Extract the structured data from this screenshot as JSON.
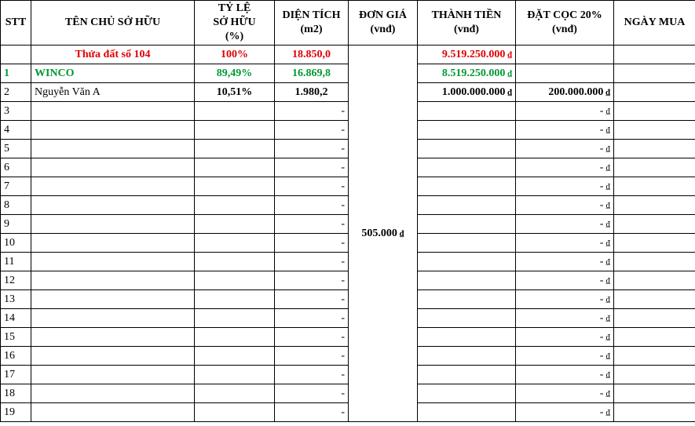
{
  "headers": {
    "stt": "STT",
    "ten_chu": "TÊN CHỦ SỞ HỮU",
    "ty_le_1": "TỶ LỆ",
    "ty_le_2": "SỞ HỮU",
    "ty_le_3": "(%)",
    "dien_tich_1": "DIỆN TÍCH",
    "dien_tich_2": "(m2)",
    "don_gia_1": "ĐƠN GIÁ",
    "don_gia_2": "(vnđ)",
    "thanh_tien_1": "THÀNH TIỀN",
    "thanh_tien_2": "(vnđ)",
    "dat_coc_1": "ĐẶT CỌC 20%",
    "dat_coc_2": "(vnđ)",
    "ngay_mua": "NGÀY MUA"
  },
  "currency_symbol": "₫",
  "total_row": {
    "ten": "Thửa đất số 104",
    "ty_le": "100%",
    "dien_tich": "18.850,0",
    "thanh_tien": "9.519.250.000"
  },
  "unit_price": "505.000",
  "rows": [
    {
      "stt": "1",
      "ten": "WINCO",
      "ty_le": "89,49%",
      "dien_tich": "16.869,8",
      "thanh_tien": "8.519.250.000",
      "dat_coc": "",
      "ngay_mua": ""
    },
    {
      "stt": "2",
      "ten": "Nguyễn Văn A",
      "ty_le": "10,51%",
      "dien_tich": "1.980,2",
      "thanh_tien": "1.000.000.000",
      "dat_coc": "200.000.000",
      "ngay_mua": ""
    },
    {
      "stt": "3",
      "ten": "",
      "ty_le": "",
      "dien_tich": "-",
      "thanh_tien": "",
      "dat_coc": "-",
      "ngay_mua": ""
    },
    {
      "stt": "4",
      "ten": "",
      "ty_le": "",
      "dien_tich": "-",
      "thanh_tien": "",
      "dat_coc": "-",
      "ngay_mua": ""
    },
    {
      "stt": "5",
      "ten": "",
      "ty_le": "",
      "dien_tich": "-",
      "thanh_tien": "",
      "dat_coc": "-",
      "ngay_mua": ""
    },
    {
      "stt": "6",
      "ten": "",
      "ty_le": "",
      "dien_tich": "-",
      "thanh_tien": "",
      "dat_coc": "-",
      "ngay_mua": ""
    },
    {
      "stt": "7",
      "ten": "",
      "ty_le": "",
      "dien_tich": "-",
      "thanh_tien": "",
      "dat_coc": "-",
      "ngay_mua": ""
    },
    {
      "stt": "8",
      "ten": "",
      "ty_le": "",
      "dien_tich": "-",
      "thanh_tien": "",
      "dat_coc": "-",
      "ngay_mua": ""
    },
    {
      "stt": "9",
      "ten": "",
      "ty_le": "",
      "dien_tich": "-",
      "thanh_tien": "",
      "dat_coc": "-",
      "ngay_mua": ""
    },
    {
      "stt": "10",
      "ten": "",
      "ty_le": "",
      "dien_tich": "-",
      "thanh_tien": "",
      "dat_coc": "-",
      "ngay_mua": ""
    },
    {
      "stt": "11",
      "ten": "",
      "ty_le": "",
      "dien_tich": "-",
      "thanh_tien": "",
      "dat_coc": "-",
      "ngay_mua": ""
    },
    {
      "stt": "12",
      "ten": "",
      "ty_le": "",
      "dien_tich": "-",
      "thanh_tien": "",
      "dat_coc": "-",
      "ngay_mua": ""
    },
    {
      "stt": "13",
      "ten": "",
      "ty_le": "",
      "dien_tich": "-",
      "thanh_tien": "",
      "dat_coc": "-",
      "ngay_mua": ""
    },
    {
      "stt": "14",
      "ten": "",
      "ty_le": "",
      "dien_tich": "-",
      "thanh_tien": "",
      "dat_coc": "-",
      "ngay_mua": ""
    },
    {
      "stt": "15",
      "ten": "",
      "ty_le": "",
      "dien_tich": "-",
      "thanh_tien": "",
      "dat_coc": "-",
      "ngay_mua": ""
    },
    {
      "stt": "16",
      "ten": "",
      "ty_le": "",
      "dien_tich": "-",
      "thanh_tien": "",
      "dat_coc": "-",
      "ngay_mua": ""
    },
    {
      "stt": "17",
      "ten": "",
      "ty_le": "",
      "dien_tich": "-",
      "thanh_tien": "",
      "dat_coc": "-",
      "ngay_mua": ""
    },
    {
      "stt": "18",
      "ten": "",
      "ty_le": "",
      "dien_tich": "-",
      "thanh_tien": "",
      "dat_coc": "-",
      "ngay_mua": ""
    },
    {
      "stt": "19",
      "ten": "",
      "ty_le": "",
      "dien_tich": "-",
      "thanh_tien": "",
      "dat_coc": "-",
      "ngay_mua": ""
    }
  ]
}
